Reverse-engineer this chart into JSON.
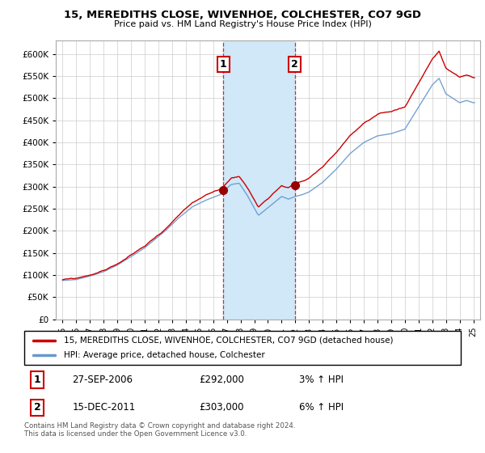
{
  "title": "15, MEREDITHS CLOSE, WIVENHOE, COLCHESTER, CO7 9GD",
  "subtitle": "Price paid vs. HM Land Registry's House Price Index (HPI)",
  "ylabel_ticks": [
    0,
    50000,
    100000,
    150000,
    200000,
    250000,
    300000,
    350000,
    400000,
    450000,
    500000,
    550000,
    600000
  ],
  "ylim": [
    0,
    630000
  ],
  "xlim_start": 1994.5,
  "xlim_end": 2025.5,
  "transaction1": {
    "year_float": 2006.74,
    "price": 292000,
    "label": "1"
  },
  "transaction2": {
    "year_float": 2011.96,
    "price": 303000,
    "label": "2"
  },
  "shade_start": 2006.74,
  "shade_end": 2011.96,
  "line_color_property": "#cc0000",
  "line_color_hpi": "#6699cc",
  "shade_color": "#d0e8f8",
  "legend_property": "15, MEREDITHS CLOSE, WIVENHOE, COLCHESTER, CO7 9GD (detached house)",
  "legend_hpi": "HPI: Average price, detached house, Colchester",
  "table_row1": [
    "1",
    "27-SEP-2006",
    "£292,000",
    "3% ↑ HPI"
  ],
  "table_row2": [
    "2",
    "15-DEC-2011",
    "£303,000",
    "6% ↑ HPI"
  ],
  "footer": "Contains HM Land Registry data © Crown copyright and database right 2024.\nThis data is licensed under the Open Government Licence v3.0.",
  "background_color": "#ffffff",
  "grid_color": "#cccccc"
}
